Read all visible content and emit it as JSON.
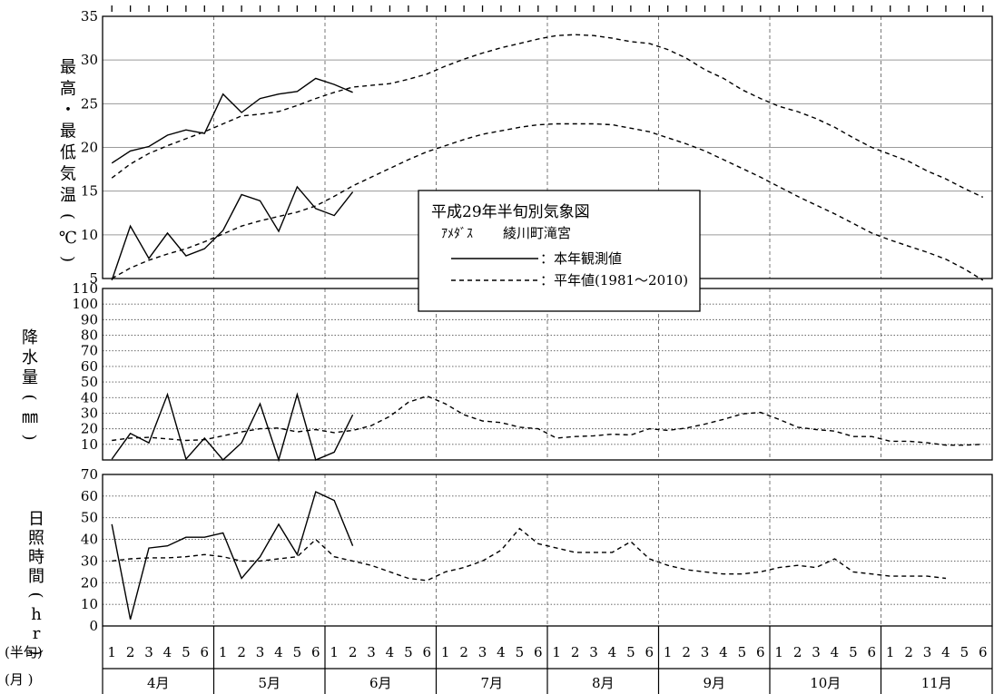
{
  "chart_data": [
    {
      "type": "line",
      "panel": "temperature",
      "ylabel": "最高・最低気温(℃)",
      "ylim": [
        5,
        35
      ],
      "yticks": [
        "5",
        "10",
        "15",
        "20",
        "25",
        "30",
        "35"
      ],
      "grid": true,
      "series": [
        {
          "role": "max_observed",
          "style": "solid",
          "values": [
            18.2,
            19.6,
            20.1,
            21.4,
            22.0,
            21.6,
            26.1,
            24.0,
            25.6,
            26.1,
            26.4,
            27.9,
            27.2,
            26.3
          ]
        },
        {
          "role": "max_normal",
          "style": "dashed",
          "values": [
            16.5,
            18.1,
            19.3,
            20.2,
            21.0,
            21.8,
            22.7,
            23.6,
            23.8,
            24.1,
            24.8,
            25.6,
            26.3,
            26.9,
            27.1,
            27.3,
            27.8,
            28.4,
            29.3,
            30.1,
            30.8,
            31.4,
            31.9,
            32.4,
            32.8,
            32.9,
            32.8,
            32.5,
            32.1,
            31.9,
            31.2,
            30.2,
            28.9,
            27.9,
            26.6,
            25.6,
            24.7,
            24.1,
            23.3,
            22.3,
            21.1,
            20.0,
            19.2,
            18.4,
            17.3,
            16.4,
            15.3,
            14.3
          ]
        },
        {
          "role": "min_observed",
          "style": "solid",
          "values": [
            4.8,
            11.0,
            7.3,
            10.2,
            7.6,
            8.4,
            10.5,
            14.6,
            13.9,
            10.4,
            15.5,
            13.0,
            12.2,
            14.9
          ]
        },
        {
          "role": "min_normal",
          "style": "dashed",
          "values": [
            5.0,
            6.2,
            7.1,
            7.8,
            8.4,
            9.2,
            10.1,
            11.0,
            11.6,
            12.1,
            12.6,
            13.3,
            14.4,
            15.6,
            16.6,
            17.6,
            18.6,
            19.5,
            20.2,
            20.9,
            21.5,
            21.9,
            22.3,
            22.6,
            22.7,
            22.7,
            22.7,
            22.6,
            22.2,
            21.8,
            21.1,
            20.4,
            19.6,
            18.6,
            17.6,
            16.6,
            15.5,
            14.4,
            13.4,
            12.4,
            11.3,
            10.2,
            9.4,
            8.7,
            8.0,
            7.2,
            6.1,
            4.8
          ]
        }
      ]
    },
    {
      "type": "line",
      "panel": "precipitation",
      "ylabel": "降水量(㎜)",
      "ylim": [
        0,
        110
      ],
      "yticks": [
        "10",
        "20",
        "30",
        "40",
        "50",
        "60",
        "70",
        "80",
        "90",
        "100",
        "110"
      ],
      "grid": true,
      "series": [
        {
          "role": "observed",
          "style": "solid",
          "values": [
            0.5,
            17,
            11,
            42,
            0.5,
            14,
            0,
            11,
            36,
            0,
            42,
            0,
            5,
            29
          ]
        },
        {
          "role": "normal",
          "style": "dashed",
          "values": [
            12.5,
            14.0,
            14.5,
            13.5,
            12.5,
            13.0,
            15.5,
            18.0,
            20.0,
            20.5,
            18.0,
            19.5,
            17.5,
            19.0,
            22.0,
            28.0,
            37.0,
            41.0,
            36.0,
            29.0,
            25.0,
            24.0,
            21.0,
            20.0,
            14.0,
            15.0,
            15.5,
            16.5,
            16.0,
            20.0,
            19.0,
            20.5,
            23.0,
            26.0,
            29.5,
            30.5,
            26.0,
            21.0,
            19.5,
            18.5,
            15.0,
            15.0,
            12.0,
            12.0,
            11.0,
            9.5,
            9.5,
            10.0
          ]
        }
      ]
    },
    {
      "type": "line",
      "panel": "sunshine",
      "ylabel": "日照時間(hr)",
      "ylim": [
        0,
        70
      ],
      "yticks": [
        "0",
        "10",
        "20",
        "30",
        "40",
        "50",
        "60",
        "70"
      ],
      "grid": true,
      "series": [
        {
          "role": "observed",
          "style": "solid",
          "values": [
            47,
            3,
            36,
            37,
            41,
            41,
            43,
            22,
            32,
            47,
            33,
            62,
            58,
            37
          ]
        },
        {
          "role": "normal",
          "style": "dashed",
          "values": [
            30,
            31,
            31.5,
            31.5,
            32,
            33,
            32,
            30,
            30,
            31,
            32,
            40,
            32,
            30,
            28,
            25,
            22,
            21,
            25,
            27,
            30,
            35,
            45,
            38,
            36,
            34,
            34,
            34,
            39,
            31,
            28,
            26,
            25,
            24,
            24,
            25,
            27,
            28,
            27,
            31,
            25,
            24,
            23,
            23,
            23,
            22
          ]
        }
      ]
    }
  ],
  "xaxis": {
    "row_label_half": "(半旬)",
    "row_label_month": "(月 )",
    "half_ticks": [
      "1",
      "2",
      "3",
      "4",
      "5",
      "6"
    ],
    "months": [
      "4月",
      "5月",
      "6月",
      "7月",
      "8月",
      "9月",
      "10月",
      "11月"
    ]
  },
  "legend": {
    "title": "平成29年半旬別気象図",
    "station_prefix": "ｱﾒﾀﾞｽ",
    "station": "綾川町滝宮",
    "observed_label": "：本年観測値",
    "normal_label": "：平年値(1981～2010)"
  }
}
